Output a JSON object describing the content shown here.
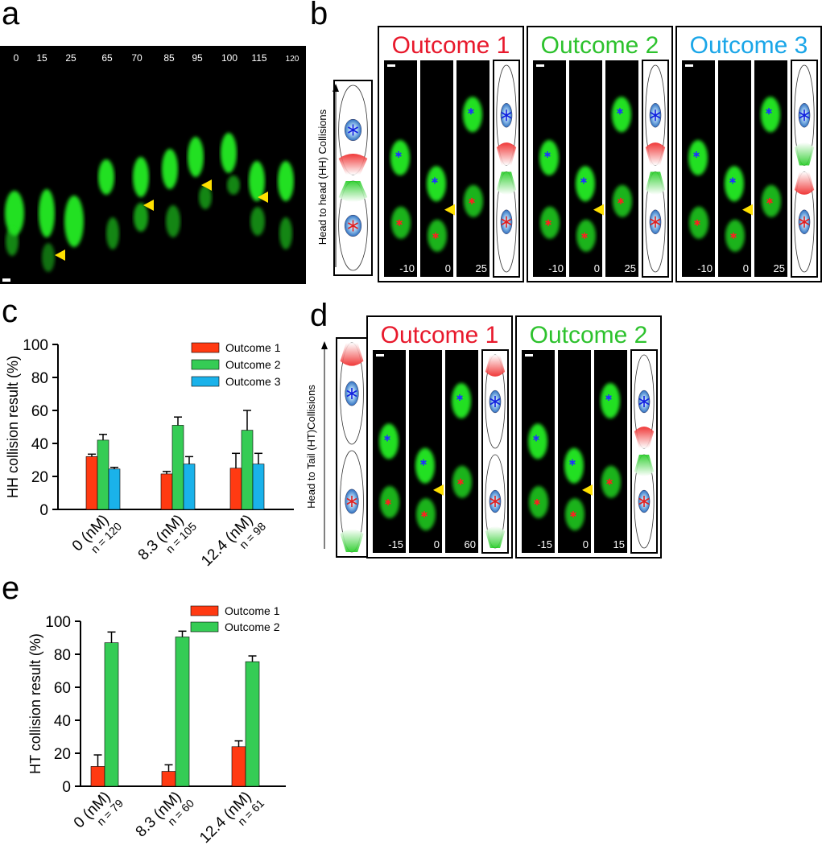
{
  "panel_a": {
    "label": "a",
    "times": [
      0,
      15,
      25,
      65,
      70,
      85,
      95,
      100,
      115,
      120
    ]
  },
  "panel_b": {
    "label": "b",
    "side_label": "Head to head (HH) Collisions",
    "outcomes": [
      {
        "title": "Outcome 1",
        "color": "#e8192c",
        "times": [
          -10,
          0,
          25
        ]
      },
      {
        "title": "Outcome 2",
        "color": "#2dc22d",
        "times": [
          -10,
          0,
          25
        ]
      },
      {
        "title": "Outcome 3",
        "color": "#1aa6e8",
        "times": [
          -10,
          0,
          25
        ]
      }
    ]
  },
  "panel_d": {
    "label": "d",
    "side_label": "Head to Tail (HT)Collisions",
    "outcomes": [
      {
        "title": "Outcome 1",
        "color": "#e8192c",
        "times": [
          -15,
          0,
          60
        ]
      },
      {
        "title": "Outcome 2",
        "color": "#2dc22d",
        "times": [
          -15,
          0,
          15
        ]
      }
    ]
  },
  "chart_data": [
    {
      "type": "bar",
      "panel_label": "c",
      "y_label": "HH collision result (%)",
      "categories": [
        "0 (nM)",
        "8.3 (nM)",
        "12.4 (nM)"
      ],
      "n_labels": [
        "n = 120",
        "n = 105",
        "n = 98"
      ],
      "ylim": [
        0,
        100
      ],
      "yticks": [
        0,
        20,
        40,
        60,
        80,
        100
      ],
      "series": [
        {
          "name": "Outcome 1",
          "color": "#ff3a12",
          "values": [
            32,
            21.5,
            25
          ],
          "errors": [
            1.5,
            1.5,
            9
          ]
        },
        {
          "name": "Outcome 2",
          "color": "#35cc55",
          "values": [
            42,
            51,
            48
          ],
          "errors": [
            3.5,
            5,
            12
          ]
        },
        {
          "name": "Outcome 3",
          "color": "#1ab2ea",
          "values": [
            24.5,
            27.5,
            27.5
          ],
          "errors": [
            1,
            4.5,
            6.5
          ]
        }
      ]
    },
    {
      "type": "bar",
      "panel_label": "e",
      "y_label": "HT collision result (%)",
      "categories": [
        "0 (nM)",
        "8.3 (nM)",
        "12.4 (nM)"
      ],
      "n_labels": [
        "n = 79",
        "n = 60",
        "n = 61"
      ],
      "ylim": [
        0,
        100
      ],
      "yticks": [
        0,
        20,
        40,
        60,
        80,
        100
      ],
      "series": [
        {
          "name": "Outcome 1",
          "color": "#ff3a12",
          "values": [
            12,
            9,
            24
          ],
          "errors": [
            7,
            4,
            3.5
          ]
        },
        {
          "name": "Outcome 2",
          "color": "#35cc55",
          "values": [
            87,
            90.5,
            75.5
          ],
          "errors": [
            6.5,
            3.5,
            3.5
          ]
        }
      ]
    }
  ]
}
